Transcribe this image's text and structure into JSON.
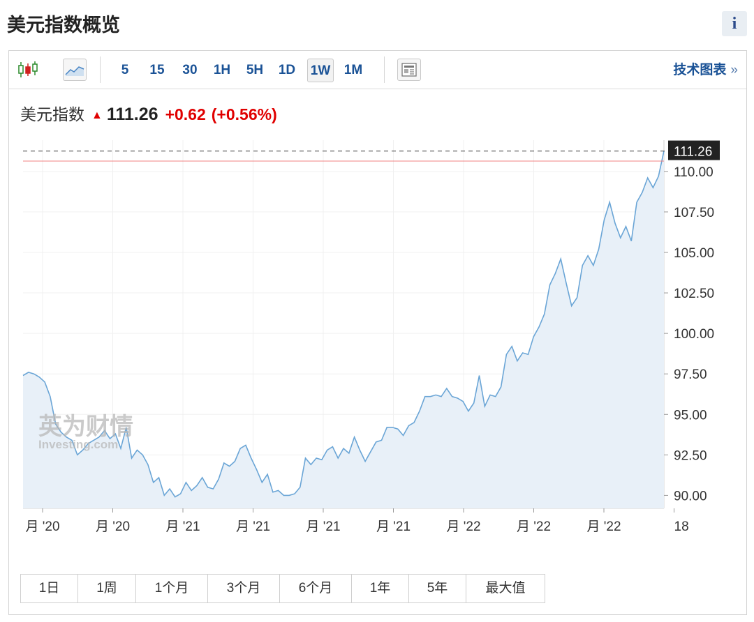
{
  "page": {
    "title": "美元指数概览",
    "info_label": "i"
  },
  "toolbar": {
    "intervals": [
      "5",
      "15",
      "30",
      "1H",
      "5H",
      "1D",
      "1W",
      "1M"
    ],
    "active_interval": "1W",
    "tech_link_label": "技术图表",
    "tech_link_chevron": "»",
    "icons": [
      "candlestick-icon",
      "area-chart-icon",
      "news-icon"
    ]
  },
  "quote": {
    "name": "美元指数",
    "arrow": "▲",
    "price": "111.26",
    "change": "+0.62",
    "change_pct": "(+0.56%)"
  },
  "watermark": {
    "cn": "英为财情",
    "en": "Investing.com"
  },
  "range_buttons": [
    "1日",
    "1周",
    "1个月",
    "3个月",
    "6个月",
    "1年",
    "5年",
    "最大值"
  ],
  "colors": {
    "line": "#6aa5d6",
    "area": "#e8f0f8",
    "up": "#e00000",
    "link": "#1a5296",
    "last_price_bg": "#222222",
    "prev_close_line": "#f08080"
  },
  "chart_data": {
    "type": "area",
    "ylim": [
      89.2,
      111.5
    ],
    "yticks": [
      "90.00",
      "92.50",
      "95.00",
      "97.50",
      "100.00",
      "102.50",
      "105.00",
      "107.50",
      "110.00"
    ],
    "ytick_values": [
      90,
      92.5,
      95,
      97.5,
      100,
      102.5,
      105,
      107.5,
      110
    ],
    "xtick_labels": [
      "月 '20",
      "月 '20",
      "月 '21",
      "月 '21",
      "月 '21",
      "月 '21",
      "月 '22",
      "月 '22",
      "月 '22",
      "18"
    ],
    "last_value": 111.26,
    "last_value_label": "111.26",
    "reference_line_value": 110.64,
    "grid": true,
    "values": [
      97.4,
      97.6,
      97.5,
      97.3,
      97.0,
      96.1,
      94.4,
      93.9,
      93.6,
      93.4,
      92.5,
      92.8,
      93.2,
      93.4,
      93.6,
      94.0,
      93.5,
      93.8,
      92.9,
      94.2,
      92.3,
      92.8,
      92.5,
      91.9,
      90.8,
      91.1,
      90.0,
      90.4,
      89.9,
      90.1,
      90.8,
      90.3,
      90.6,
      91.1,
      90.5,
      90.4,
      91.0,
      92.0,
      91.8,
      92.1,
      92.9,
      93.1,
      92.3,
      91.6,
      90.8,
      91.3,
      90.2,
      90.3,
      90.0,
      90.0,
      90.1,
      90.5,
      92.3,
      91.9,
      92.3,
      92.2,
      92.8,
      93.0,
      92.3,
      92.9,
      92.6,
      93.6,
      92.8,
      92.1,
      92.7,
      93.3,
      93.4,
      94.2,
      94.2,
      94.1,
      93.7,
      94.3,
      94.5,
      95.2,
      96.1,
      96.1,
      96.2,
      96.1,
      96.6,
      96.1,
      96.0,
      95.8,
      95.2,
      95.7,
      97.4,
      95.5,
      96.2,
      96.1,
      96.7,
      98.7,
      99.2,
      98.3,
      98.8,
      98.7,
      99.8,
      100.4,
      101.2,
      103.0,
      103.7,
      104.6,
      103.1,
      101.7,
      102.2,
      104.2,
      104.8,
      104.2,
      105.2,
      107.0,
      108.1,
      106.8,
      105.9,
      106.6,
      105.7,
      108.1,
      108.7,
      109.6,
      109.0,
      109.7,
      111.26
    ]
  }
}
